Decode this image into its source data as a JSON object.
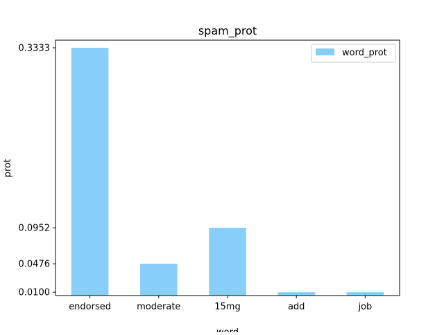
{
  "chart_data": {
    "type": "bar",
    "title": "spam_prot",
    "xlabel": "word",
    "ylabel": "prot",
    "categories": [
      "endorsed",
      "moderate",
      "15mg",
      "add",
      "job"
    ],
    "series": [
      {
        "name": "word_prot",
        "values": [
          0.3333,
          0.0476,
          0.0952,
          0.01,
          0.01
        ],
        "color": "#87cefa"
      }
    ],
    "y_ticks": [
      "0.0100",
      "0.0476",
      "0.0952",
      "0.3333"
    ],
    "ylim": [
      0.0056,
      0.3434
    ],
    "grid": false,
    "legend_position": "top-right"
  }
}
